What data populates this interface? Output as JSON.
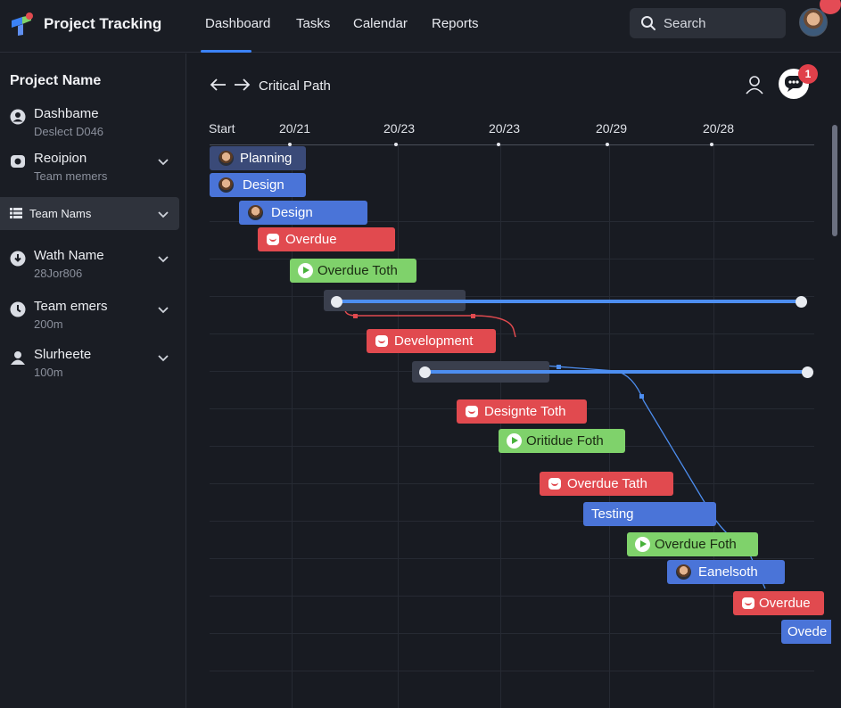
{
  "app": {
    "title": "Project Tracking"
  },
  "nav": {
    "tabs": [
      "Dashboard",
      "Tasks",
      "Calendar",
      "Reports"
    ],
    "active": "Dashboard"
  },
  "search": {
    "label": "Search"
  },
  "sidebar": {
    "title": "Project Name",
    "items": [
      {
        "label": "Dashbame",
        "sub": "Deslect D046",
        "icon": "user-circle-icon"
      },
      {
        "label": "Reoipion",
        "sub": "Team memers",
        "icon": "camera-icon"
      },
      {
        "label": "Team Nams",
        "sub": "",
        "icon": "list-icon"
      },
      {
        "label": "Wath Name",
        "sub": "28Jor806",
        "icon": "download-circle-icon"
      },
      {
        "label": "Team emers",
        "sub": "200m",
        "icon": "clock-icon"
      },
      {
        "label": "Slurheete",
        "sub": "100m",
        "icon": "users-icon"
      }
    ]
  },
  "header": {
    "title": "Critical Path",
    "notifications": "1"
  },
  "timeline": {
    "start_label": "Start",
    "columns": [
      "20/21",
      "20/23",
      "20/23",
      "20/29",
      "20/28"
    ]
  },
  "tasks": [
    {
      "label": "Planning",
      "color": "#3a4a78",
      "icon": "avatar"
    },
    {
      "label": "Design",
      "color": "#4a74d8",
      "icon": "avatar"
    },
    {
      "label": "Design",
      "color": "#4a74d8",
      "icon": "avatar"
    },
    {
      "label": "Overdue",
      "color": "#e14a4f",
      "icon": "message"
    },
    {
      "label": "Overdue Toth",
      "color": "#7fd26b",
      "icon": "play"
    },
    {
      "label": "Development",
      "color": "#e14a4f",
      "icon": "message"
    },
    {
      "label": "Designte Toth",
      "color": "#e14a4f",
      "icon": "message"
    },
    {
      "label": "Oritidue Foth",
      "color": "#7fd26b",
      "icon": "play"
    },
    {
      "label": "Overdue Tath",
      "color": "#e14a4f",
      "icon": "message"
    },
    {
      "label": "Testing",
      "color": "#4a74d8",
      "icon": "none"
    },
    {
      "label": "Overdue Foth",
      "color": "#7fd26b",
      "icon": "play"
    },
    {
      "label": "Eanelsoth",
      "color": "#4a74d8",
      "icon": "avatar"
    },
    {
      "label": "Overdue",
      "color": "#e14a4f",
      "icon": "message"
    },
    {
      "label": "Ovede",
      "color": "#4a74d8",
      "icon": "none"
    }
  ],
  "colors": {
    "accent": "#3b82f6",
    "critical_path": "#4d8ef0",
    "overdue": "#e14a4f",
    "on_track": "#7fd26b",
    "task": "#4a74d8"
  }
}
